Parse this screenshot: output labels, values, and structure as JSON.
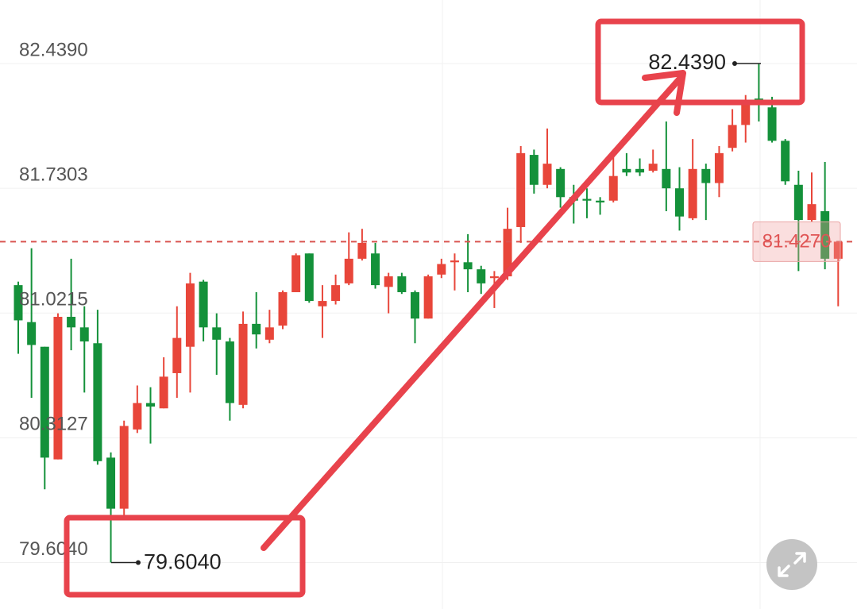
{
  "chart_data": {
    "type": "candlestick",
    "up_color": "#e8463a",
    "down_color": "#14913a",
    "ylim": [
      79.34,
      82.8
    ],
    "yticks": [
      {
        "value": 82.439,
        "label": "82.4390"
      },
      {
        "value": 81.7303,
        "label": "81.7303"
      },
      {
        "value": 81.0215,
        "label": "81.0215"
      },
      {
        "value": 80.3127,
        "label": "80.3127"
      },
      {
        "value": 79.604,
        "label": "79.6040"
      }
    ],
    "grid": true,
    "open": [
      81.18,
      80.97,
      80.83,
      80.19,
      81.0,
      80.94,
      80.85,
      80.2,
      79.91,
      80.36,
      80.51,
      80.48,
      80.68,
      80.83,
      81.2,
      80.94,
      80.86,
      80.5,
      80.96,
      80.87,
      80.95,
      81.14,
      81.36,
      81.06,
      81.09,
      81.19,
      81.33,
      81.36,
      81.17,
      81.23,
      81.14,
      80.99,
      81.24,
      81.31,
      81.31,
      81.27,
      81.22,
      81.23,
      81.51,
      81.92,
      81.75,
      81.84,
      81.68,
      81.67,
      81.66,
      81.66,
      81.84,
      81.84,
      81.83,
      81.84,
      81.73,
      81.56,
      81.84,
      81.76,
      81.96,
      82.09,
      82.24,
      82.19,
      82.0,
      81.75,
      81.55,
      81.6,
      81.33
    ],
    "high": [
      81.2,
      81.39,
      80.83,
      81.02,
      81.33,
      81.06,
      81.04,
      80.23,
      80.41,
      80.61,
      80.6,
      80.77,
      81.06,
      81.25,
      81.21,
      81.02,
      80.88,
      81.03,
      81.14,
      81.04,
      81.15,
      81.36,
      81.36,
      81.18,
      81.24,
      81.48,
      81.5,
      81.42,
      81.25,
      81.25,
      81.15,
      81.24,
      81.33,
      81.36,
      81.47,
      81.29,
      81.26,
      81.62,
      81.97,
      81.95,
      82.07,
      81.85,
      81.75,
      81.73,
      81.68,
      81.91,
      81.93,
      81.9,
      81.95,
      82.11,
      81.85,
      82.01,
      81.87,
      81.97,
      82.18,
      82.26,
      82.439,
      82.25,
      82.01,
      81.83,
      81.82,
      81.88,
      81.427
    ],
    "low": [
      80.79,
      80.54,
      80.02,
      80.19,
      80.81,
      80.57,
      80.16,
      79.604,
      79.87,
      80.34,
      80.28,
      80.48,
      80.54,
      80.57,
      80.86,
      80.67,
      80.41,
      80.48,
      80.82,
      80.85,
      80.93,
      81.14,
      81.08,
      80.88,
      81.07,
      81.18,
      81.32,
      81.16,
      81.02,
      81.13,
      80.85,
      80.99,
      81.22,
      81.15,
      81.14,
      81.13,
      81.05,
      81.21,
      81.42,
      81.7,
      81.73,
      81.62,
      81.53,
      81.56,
      81.58,
      81.65,
      81.8,
      81.8,
      81.82,
      81.6,
      81.49,
      81.55,
      81.55,
      81.68,
      81.94,
      81.99,
      82.11,
      81.99,
      81.75,
      81.26,
      81.54,
      81.27,
      81.06
    ],
    "close": [
      80.98,
      80.84,
      80.2,
      81.0,
      80.94,
      80.86,
      80.18,
      79.91,
      80.38,
      80.51,
      80.49,
      80.66,
      80.88,
      81.19,
      80.94,
      80.87,
      80.51,
      80.96,
      80.9,
      80.94,
      81.14,
      81.35,
      81.09,
      81.09,
      81.18,
      81.33,
      81.42,
      81.18,
      81.23,
      81.14,
      80.99,
      81.23,
      81.3,
      81.32,
      81.27,
      81.19,
      81.23,
      81.5,
      81.93,
      81.75,
      81.87,
      81.68,
      81.66,
      81.66,
      81.65,
      81.8,
      81.82,
      81.82,
      81.87,
      81.73,
      81.57,
      81.84,
      81.76,
      81.93,
      82.09,
      82.21,
      82.21,
      82.0,
      81.77,
      81.55,
      81.64,
      81.33,
      81.427
    ],
    "high_marker": {
      "value": 82.439,
      "label": "82.4390"
    },
    "low_marker": {
      "value": 79.604,
      "label": "79.6040"
    },
    "last_price": {
      "value": 81.427,
      "label": "81.4270"
    }
  }
}
